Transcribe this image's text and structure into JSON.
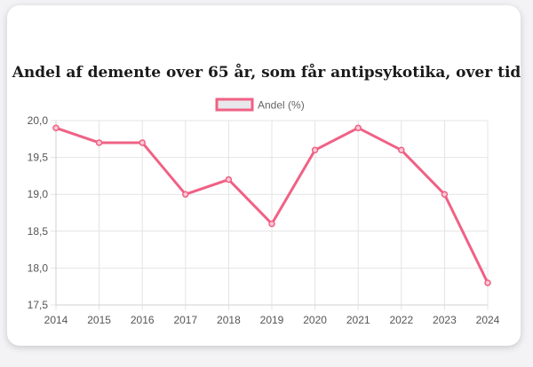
{
  "chart_data": {
    "type": "line",
    "title": "Andel af demente over 65 år, som får antipsykotika, over tid",
    "xlabel": "",
    "ylabel": "",
    "categories": [
      "2014",
      "2015",
      "2016",
      "2017",
      "2018",
      "2019",
      "2020",
      "2021",
      "2022",
      "2023",
      "2024"
    ],
    "series": [
      {
        "name": "Andel (%)",
        "values": [
          19.9,
          19.7,
          19.7,
          19.0,
          19.2,
          18.6,
          19.6,
          19.9,
          19.6,
          19.0,
          17.8
        ],
        "color": "#f06185"
      }
    ],
    "ylim": [
      17.5,
      20.0
    ],
    "yticks": [
      "17,5",
      "18,0",
      "18,5",
      "19,0",
      "19,5",
      "20,0"
    ],
    "grid": true,
    "legend": "top-center"
  }
}
